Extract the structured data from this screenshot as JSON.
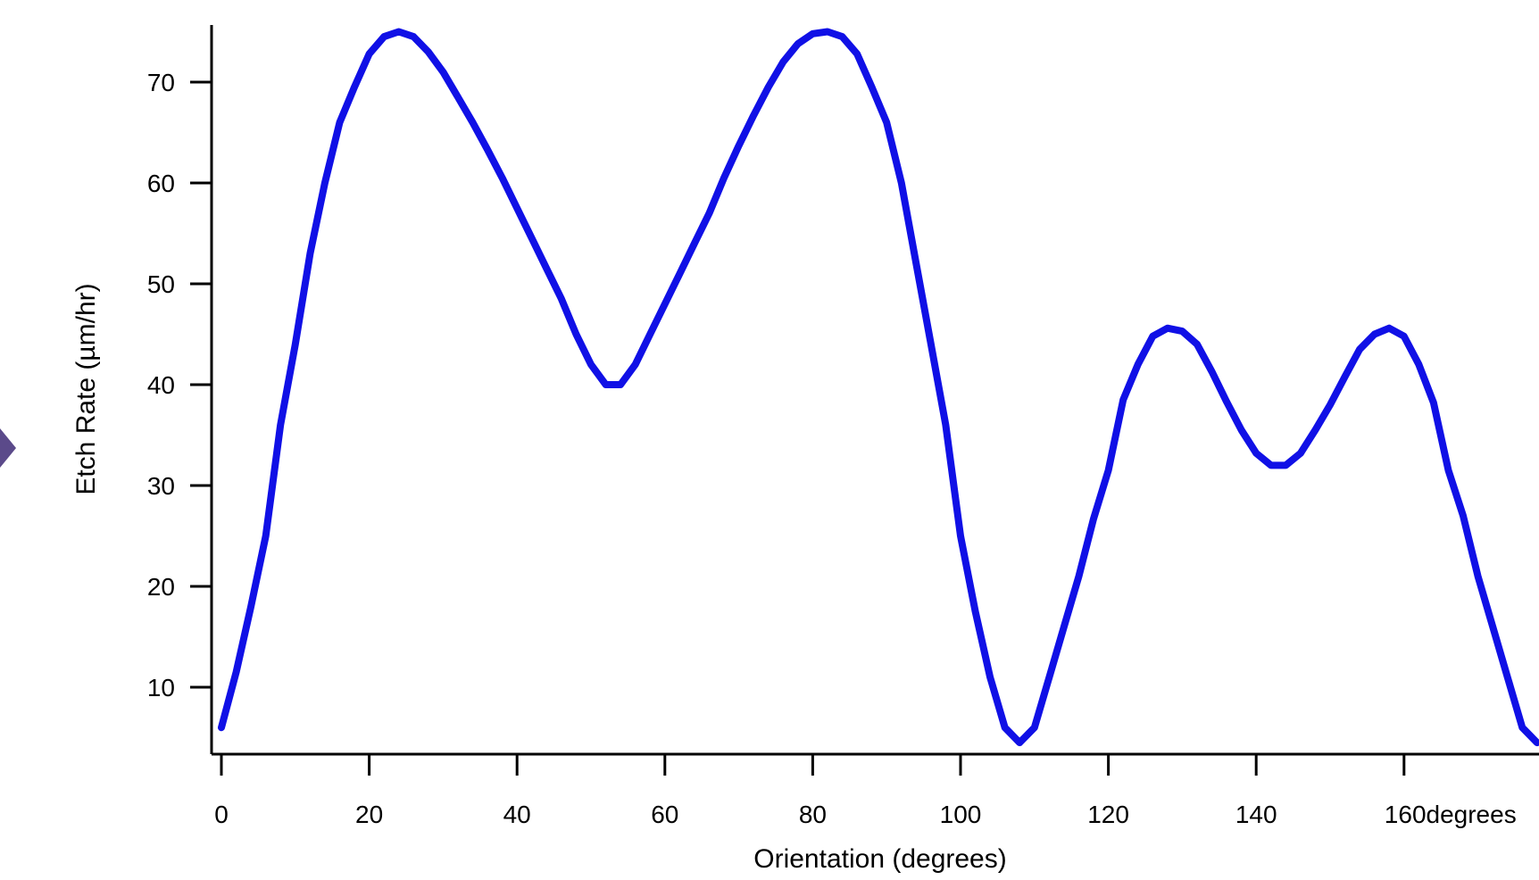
{
  "chart_data": {
    "type": "line",
    "xlabel": "Orientation (degrees)",
    "ylabel": "Etch Rate (µm/hr)",
    "xlim": [
      0,
      178
    ],
    "ylim": [
      3.5,
      75
    ],
    "x_ticks": [
      0,
      20,
      40,
      60,
      80,
      100,
      120,
      140,
      160
    ],
    "x_tick_labels": [
      "0",
      "20",
      "40",
      "60",
      "80",
      "100",
      "120",
      "140",
      "160degrees"
    ],
    "y_ticks": [
      10,
      20,
      30,
      40,
      50,
      60,
      70
    ],
    "y_tick_labels": [
      "10",
      "20",
      "30",
      "40",
      "50",
      "60",
      "70"
    ],
    "grid": false,
    "line_color": "#1010e6",
    "axis_color": "#000000",
    "decoration_color": "#5b4a8a",
    "series": [
      {
        "x": [
          0,
          2,
          4,
          6,
          8,
          10,
          12,
          14,
          16,
          18,
          20,
          22,
          24,
          26,
          28,
          30,
          32,
          34,
          36,
          38,
          40,
          42,
          44,
          46,
          48,
          50,
          52,
          54,
          56,
          58,
          60,
          62,
          64,
          66,
          68,
          70,
          72,
          74,
          76,
          78,
          80,
          82,
          84,
          86,
          88,
          90,
          92,
          94,
          96,
          98,
          100,
          102,
          104,
          106,
          108,
          110,
          112,
          114,
          116,
          118,
          120,
          122,
          124,
          126,
          128,
          130,
          132,
          134,
          136,
          138,
          140,
          142,
          144,
          146,
          148,
          150,
          152,
          154,
          156,
          158,
          160,
          162,
          164,
          166,
          168,
          170,
          172,
          174,
          176,
          178
        ],
        "y": [
          6,
          11.5,
          18,
          25,
          36,
          44,
          53,
          60,
          66,
          69.5,
          72.8,
          74.5,
          75,
          74.5,
          73,
          71,
          68.5,
          66,
          63.3,
          60.5,
          57.5,
          54.5,
          51.5,
          48.5,
          45,
          42,
          40,
          40,
          42,
          45,
          48,
          51,
          54,
          57,
          60.5,
          63.7,
          66.7,
          69.5,
          72,
          73.8,
          74.8,
          75,
          74.5,
          72.8,
          69.5,
          66,
          60,
          52,
          44,
          36,
          25,
          17.5,
          11,
          6,
          4.5,
          6,
          11,
          16,
          21,
          26.7,
          31.5,
          38.5,
          42,
          44.8,
          45.6,
          45.3,
          44,
          41.3,
          38.3,
          35.5,
          33.2,
          32,
          32,
          33.2,
          35.5,
          38,
          40.8,
          43.5,
          45,
          45.6,
          44.8,
          42,
          38.2,
          31.5,
          27,
          21,
          16,
          11,
          6,
          4.5
        ]
      }
    ]
  }
}
